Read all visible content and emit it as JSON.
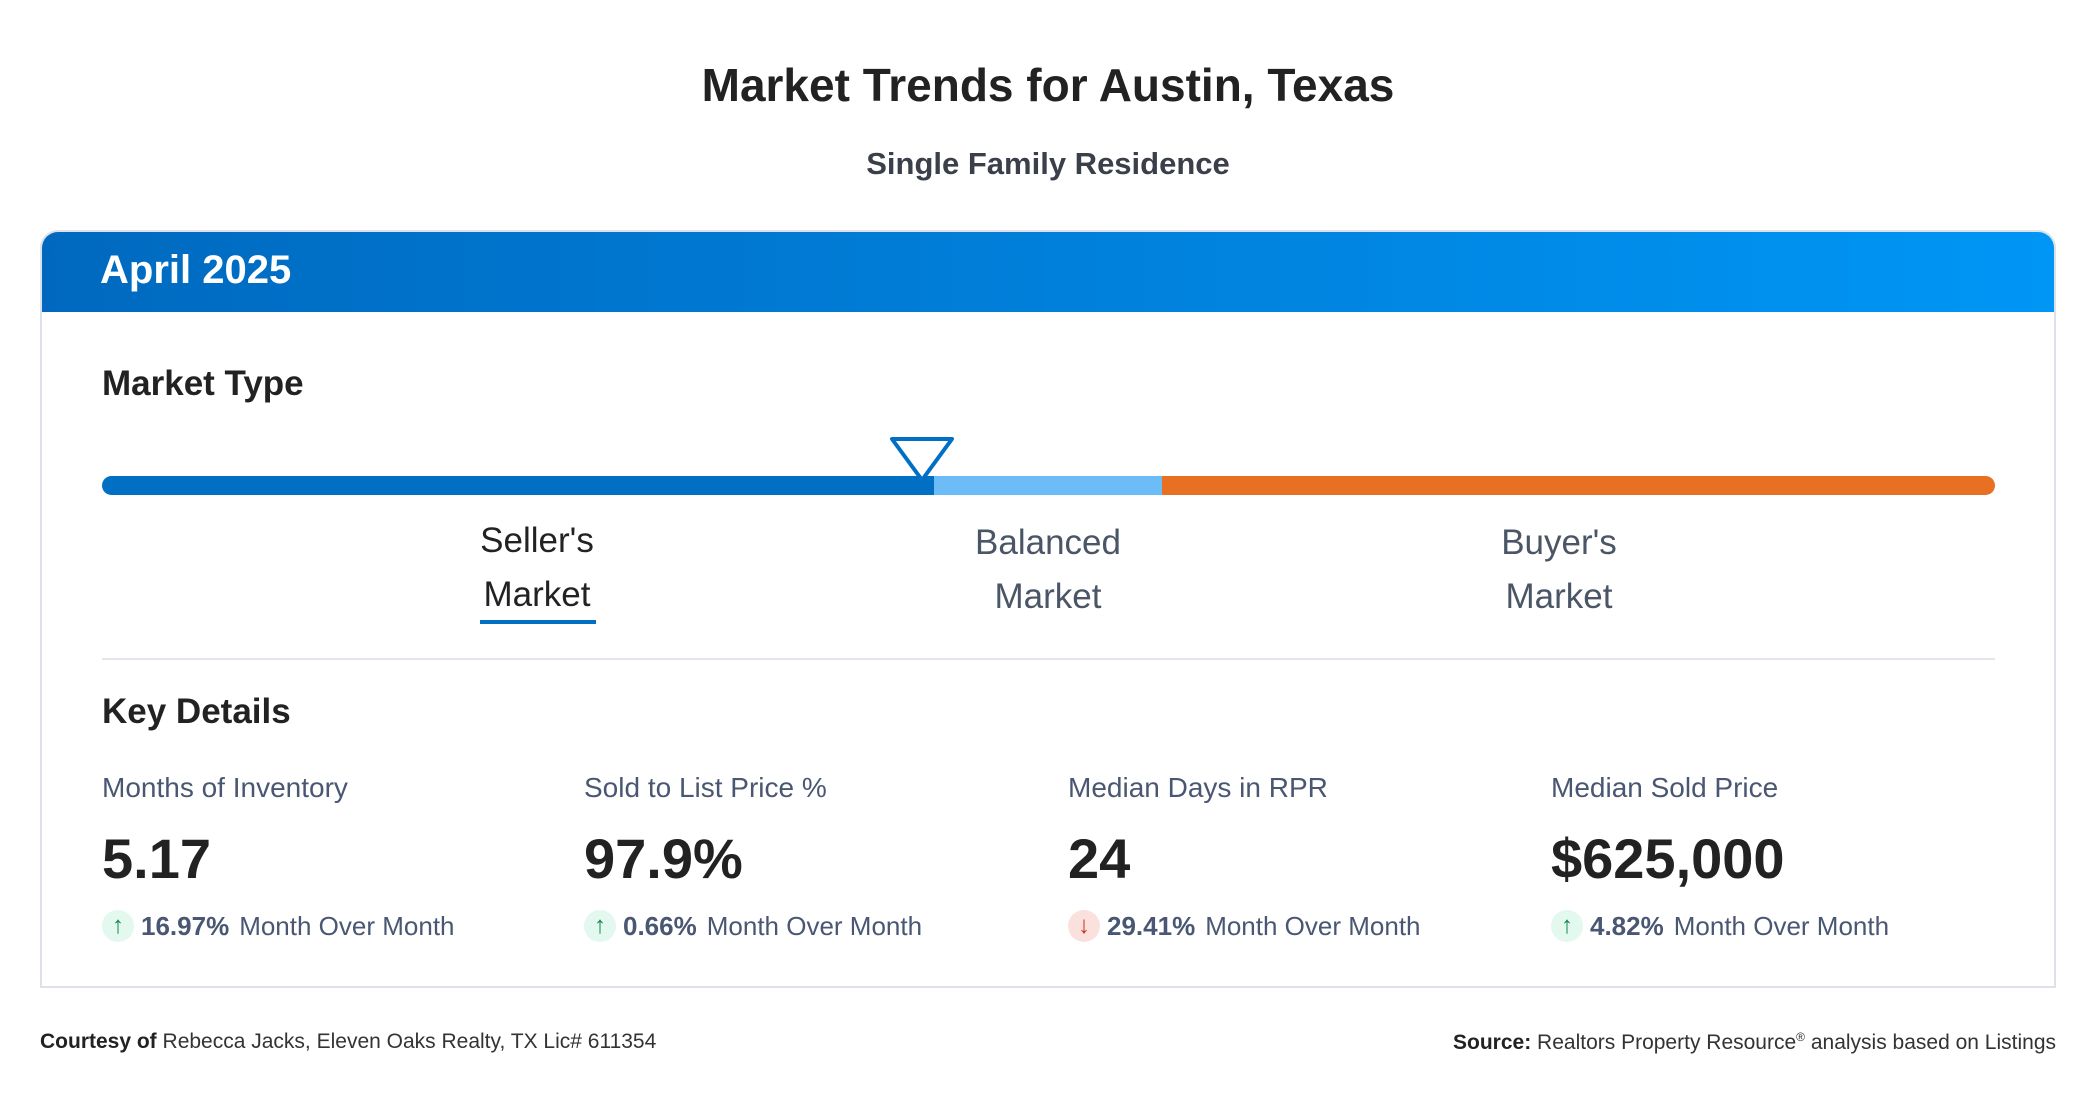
{
  "title": "Market Trends for Austin, Texas",
  "subtitle": "Single Family Residence",
  "period": "April 2025",
  "market_type": {
    "heading": "Market Type",
    "labels": [
      {
        "line1": "Seller's",
        "line2": "Market"
      },
      {
        "line1": "Balanced",
        "line2": "Market"
      },
      {
        "line1": "Buyer's",
        "line2": "Market"
      }
    ],
    "selected": "Seller's Market",
    "colors": {
      "seller": "#006fc4",
      "balanced": "#6bbcf7",
      "buyer": "#e87022"
    }
  },
  "key_details": {
    "heading": "Key Details",
    "metrics": [
      {
        "label": "Months of Inventory",
        "value": "5.17",
        "direction": "up",
        "change": "16.97%",
        "period": "Month Over Month"
      },
      {
        "label": "Sold to List Price %",
        "value": "97.9%",
        "direction": "up",
        "change": "0.66%",
        "period": "Month Over Month"
      },
      {
        "label": "Median Days in RPR",
        "value": "24",
        "direction": "down",
        "change": "29.41%",
        "period": "Month Over Month"
      },
      {
        "label": "Median Sold Price",
        "value": "$625,000",
        "direction": "up",
        "change": "4.82%",
        "period": "Month Over Month"
      }
    ]
  },
  "footer": {
    "courtesy_label": "Courtesy of",
    "courtesy_text": "Rebecca Jacks, Eleven Oaks Realty, TX Lic# 611354",
    "source_label": "Source:",
    "source_text": "Realtors Property Resource",
    "source_reg": "®",
    "source_suffix": "analysis based on Listings"
  }
}
